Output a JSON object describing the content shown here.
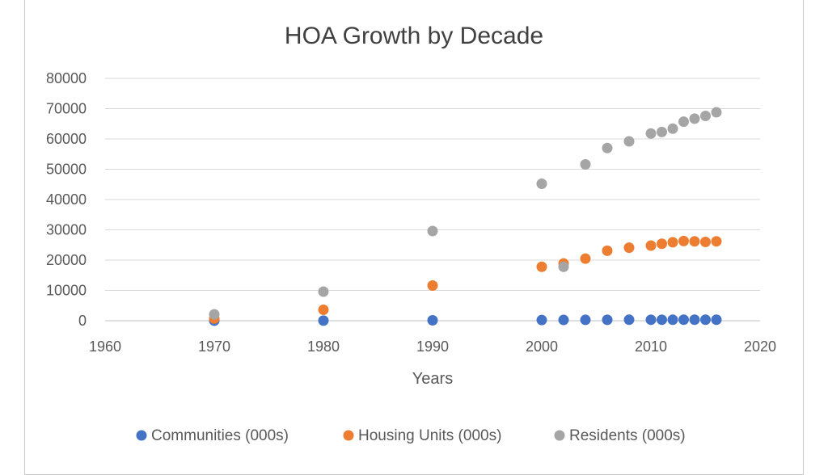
{
  "chart_data": {
    "type": "scatter",
    "title": "HOA Growth by Decade",
    "xlabel": "Years",
    "ylabel": "",
    "xlim": [
      1960,
      2020
    ],
    "ylim": [
      0,
      80000
    ],
    "xticks": [
      1960,
      1970,
      1980,
      1990,
      2000,
      2010,
      2020
    ],
    "yticks": [
      0,
      10000,
      20000,
      30000,
      40000,
      50000,
      60000,
      70000,
      80000
    ],
    "grid": "horizontal",
    "legend_position": "bottom",
    "series": [
      {
        "name": "Communities (000s)",
        "color": "#4472c4",
        "points": [
          [
            1970,
            10
          ],
          [
            1980,
            36
          ],
          [
            1990,
            130
          ],
          [
            2000,
            222
          ],
          [
            2002,
            255
          ],
          [
            2004,
            286
          ],
          [
            2006,
            306
          ],
          [
            2008,
            324
          ],
          [
            2010,
            311
          ],
          [
            2011,
            314
          ],
          [
            2012,
            323
          ],
          [
            2013,
            329
          ],
          [
            2014,
            334
          ],
          [
            2015,
            338
          ],
          [
            2016,
            342
          ]
        ]
      },
      {
        "name": "Housing Units (000s)",
        "color": "#ed7d31",
        "points": [
          [
            1970,
            701
          ],
          [
            1980,
            3600
          ],
          [
            1990,
            11600
          ],
          [
            2000,
            17800
          ],
          [
            2002,
            18900
          ],
          [
            2004,
            20500
          ],
          [
            2006,
            23100
          ],
          [
            2008,
            24100
          ],
          [
            2010,
            24800
          ],
          [
            2011,
            25400
          ],
          [
            2012,
            25900
          ],
          [
            2013,
            26300
          ],
          [
            2014,
            26200
          ],
          [
            2015,
            26000
          ],
          [
            2016,
            26200
          ]
        ]
      },
      {
        "name": "Residents (000s)",
        "color": "#a5a5a5",
        "points": [
          [
            1970,
            2100
          ],
          [
            1980,
            9600
          ],
          [
            1990,
            29600
          ],
          [
            2000,
            45200
          ],
          [
            2002,
            17800
          ],
          [
            2004,
            51600
          ],
          [
            2006,
            57000
          ],
          [
            2008,
            59200
          ],
          [
            2010,
            61800
          ],
          [
            2011,
            62300
          ],
          [
            2012,
            63400
          ],
          [
            2013,
            65700
          ],
          [
            2014,
            66700
          ],
          [
            2015,
            67600
          ],
          [
            2016,
            68800
          ]
        ]
      }
    ]
  }
}
